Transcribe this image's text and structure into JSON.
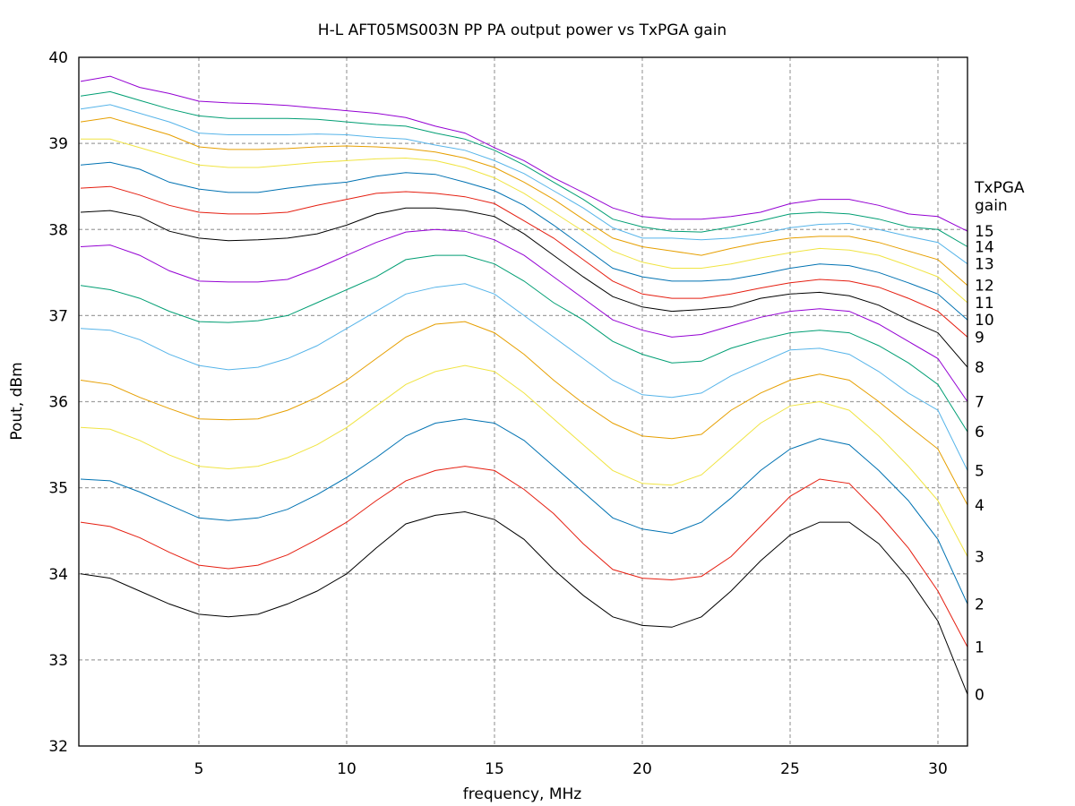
{
  "chart_data": {
    "type": "line",
    "title": "H-L AFT05MS003N PP PA output power vs TxPGA gain",
    "xlabel": "frequency, MHz",
    "ylabel": "Pout, dBm",
    "xlim": [
      0.94,
      31
    ],
    "ylim": [
      32,
      40
    ],
    "xticks": [
      5,
      10,
      15,
      20,
      25,
      30
    ],
    "yticks": [
      32,
      33,
      34,
      35,
      36,
      37,
      38,
      39,
      40
    ],
    "grid": true,
    "legend_title": [
      "TxPGA",
      "gain"
    ],
    "legend_placement": "right, at line ends",
    "x": [
      1,
      2,
      3,
      4,
      5,
      6,
      7,
      8,
      9,
      10,
      11,
      12,
      13,
      14,
      15,
      16,
      17,
      18,
      19,
      20,
      21,
      22,
      23,
      24,
      25,
      26,
      27,
      28,
      29,
      30,
      31
    ],
    "series": [
      {
        "name": "0",
        "color": "#000000",
        "values": [
          34.0,
          33.95,
          33.8,
          33.65,
          33.53,
          33.5,
          33.53,
          33.65,
          33.8,
          34.0,
          34.3,
          34.58,
          34.68,
          34.72,
          34.63,
          34.4,
          34.05,
          33.75,
          33.5,
          33.4,
          33.38,
          33.5,
          33.8,
          34.15,
          34.45,
          34.6,
          34.6,
          34.35,
          33.95,
          33.45,
          32.6
        ]
      },
      {
        "name": "1",
        "color": "#e51e10",
        "values": [
          34.6,
          34.55,
          34.42,
          34.25,
          34.1,
          34.06,
          34.1,
          34.22,
          34.4,
          34.6,
          34.85,
          35.08,
          35.2,
          35.25,
          35.2,
          34.98,
          34.7,
          34.35,
          34.05,
          33.95,
          33.93,
          33.97,
          34.2,
          34.55,
          34.9,
          35.1,
          35.05,
          34.7,
          34.3,
          33.8,
          33.15
        ]
      },
      {
        "name": "2",
        "color": "#0072b2",
        "values": [
          35.1,
          35.08,
          34.95,
          34.8,
          34.65,
          34.62,
          34.65,
          34.75,
          34.92,
          35.12,
          35.35,
          35.6,
          35.75,
          35.8,
          35.75,
          35.55,
          35.25,
          34.95,
          34.65,
          34.52,
          34.47,
          34.6,
          34.88,
          35.2,
          35.45,
          35.57,
          35.5,
          35.2,
          34.85,
          34.4,
          33.65
        ]
      },
      {
        "name": "3",
        "color": "#f0e442",
        "values": [
          35.7,
          35.68,
          35.55,
          35.38,
          35.25,
          35.22,
          35.25,
          35.35,
          35.5,
          35.7,
          35.95,
          36.2,
          36.35,
          36.42,
          36.35,
          36.1,
          35.8,
          35.5,
          35.2,
          35.05,
          35.03,
          35.15,
          35.45,
          35.75,
          35.95,
          36.0,
          35.9,
          35.6,
          35.25,
          34.85,
          34.2
        ]
      },
      {
        "name": "4",
        "color": "#e69f00",
        "values": [
          36.25,
          36.2,
          36.05,
          35.92,
          35.8,
          35.79,
          35.8,
          35.9,
          36.05,
          36.25,
          36.5,
          36.75,
          36.9,
          36.93,
          36.8,
          36.55,
          36.25,
          35.98,
          35.75,
          35.6,
          35.57,
          35.62,
          35.9,
          36.1,
          36.25,
          36.32,
          36.25,
          36.0,
          35.72,
          35.45,
          34.8
        ]
      },
      {
        "name": "5",
        "color": "#56b4e9",
        "values": [
          36.85,
          36.83,
          36.72,
          36.55,
          36.42,
          36.37,
          36.4,
          36.5,
          36.65,
          36.85,
          37.05,
          37.25,
          37.33,
          37.37,
          37.25,
          37.0,
          36.75,
          36.5,
          36.25,
          36.08,
          36.05,
          36.1,
          36.3,
          36.45,
          36.6,
          36.62,
          36.55,
          36.35,
          36.1,
          35.9,
          35.2
        ]
      },
      {
        "name": "6",
        "color": "#009e73",
        "values": [
          37.35,
          37.3,
          37.2,
          37.05,
          36.93,
          36.92,
          36.94,
          37.0,
          37.15,
          37.3,
          37.45,
          37.65,
          37.7,
          37.7,
          37.6,
          37.4,
          37.15,
          36.95,
          36.7,
          36.55,
          36.45,
          36.47,
          36.62,
          36.72,
          36.8,
          36.83,
          36.8,
          36.65,
          36.45,
          36.2,
          35.65
        ]
      },
      {
        "name": "7",
        "color": "#9400d3",
        "values": [
          37.8,
          37.82,
          37.7,
          37.52,
          37.4,
          37.39,
          37.39,
          37.42,
          37.55,
          37.7,
          37.85,
          37.97,
          38.0,
          37.98,
          37.88,
          37.7,
          37.45,
          37.2,
          36.95,
          36.83,
          36.75,
          36.78,
          36.88,
          36.98,
          37.05,
          37.08,
          37.05,
          36.9,
          36.7,
          36.5,
          36.0
        ]
      },
      {
        "name": "8",
        "color": "#000000",
        "values": [
          38.2,
          38.22,
          38.15,
          37.98,
          37.9,
          37.87,
          37.88,
          37.9,
          37.95,
          38.05,
          38.18,
          38.25,
          38.25,
          38.22,
          38.15,
          37.95,
          37.7,
          37.45,
          37.22,
          37.1,
          37.05,
          37.07,
          37.1,
          37.2,
          37.25,
          37.27,
          37.23,
          37.12,
          36.95,
          36.8,
          36.4
        ]
      },
      {
        "name": "9",
        "color": "#e51e10",
        "values": [
          38.48,
          38.5,
          38.4,
          38.28,
          38.2,
          38.18,
          38.18,
          38.2,
          38.28,
          38.35,
          38.42,
          38.44,
          38.42,
          38.38,
          38.3,
          38.1,
          37.9,
          37.65,
          37.4,
          37.25,
          37.2,
          37.2,
          37.25,
          37.32,
          37.38,
          37.42,
          37.4,
          37.33,
          37.2,
          37.05,
          36.75
        ]
      },
      {
        "name": "10",
        "color": "#0072b2",
        "values": [
          38.75,
          38.78,
          38.7,
          38.55,
          38.47,
          38.43,
          38.43,
          38.48,
          38.52,
          38.55,
          38.62,
          38.66,
          38.64,
          38.55,
          38.45,
          38.28,
          38.05,
          37.8,
          37.55,
          37.45,
          37.4,
          37.4,
          37.42,
          37.48,
          37.55,
          37.6,
          37.58,
          37.5,
          37.38,
          37.25,
          36.95
        ]
      },
      {
        "name": "11",
        "color": "#f0e442",
        "values": [
          39.05,
          39.05,
          38.95,
          38.85,
          38.75,
          38.72,
          38.72,
          38.75,
          38.78,
          38.8,
          38.82,
          38.83,
          38.8,
          38.72,
          38.6,
          38.42,
          38.2,
          37.98,
          37.75,
          37.62,
          37.55,
          37.55,
          37.6,
          37.67,
          37.73,
          37.78,
          37.76,
          37.7,
          37.58,
          37.45,
          37.15
        ]
      },
      {
        "name": "12",
        "color": "#e69f00",
        "values": [
          39.25,
          39.3,
          39.2,
          39.1,
          38.96,
          38.93,
          38.93,
          38.94,
          38.96,
          38.97,
          38.96,
          38.94,
          38.9,
          38.83,
          38.72,
          38.55,
          38.35,
          38.12,
          37.9,
          37.8,
          37.75,
          37.7,
          37.78,
          37.85,
          37.9,
          37.92,
          37.92,
          37.85,
          37.75,
          37.65,
          37.35
        ]
      },
      {
        "name": "13",
        "color": "#56b4e9",
        "values": [
          39.4,
          39.45,
          39.35,
          39.25,
          39.12,
          39.1,
          39.1,
          39.1,
          39.11,
          39.1,
          39.07,
          39.05,
          38.98,
          38.92,
          38.8,
          38.65,
          38.45,
          38.25,
          38.02,
          37.9,
          37.9,
          37.88,
          37.9,
          37.95,
          38.02,
          38.06,
          38.07,
          38.0,
          37.92,
          37.85,
          37.6
        ]
      },
      {
        "name": "14",
        "color": "#009e73",
        "values": [
          39.55,
          39.6,
          39.5,
          39.4,
          39.32,
          39.29,
          39.29,
          39.29,
          39.28,
          39.25,
          39.22,
          39.2,
          39.12,
          39.05,
          38.92,
          38.75,
          38.55,
          38.35,
          38.12,
          38.03,
          37.98,
          37.97,
          38.03,
          38.1,
          38.18,
          38.2,
          38.18,
          38.12,
          38.03,
          38.0,
          37.8
        ]
      },
      {
        "name": "15",
        "color": "#9400d3",
        "values": [
          39.72,
          39.78,
          39.65,
          39.58,
          39.49,
          39.47,
          39.46,
          39.44,
          39.41,
          39.38,
          39.35,
          39.3,
          39.2,
          39.12,
          38.95,
          38.8,
          38.6,
          38.43,
          38.25,
          38.15,
          38.12,
          38.12,
          38.15,
          38.2,
          38.3,
          38.35,
          38.35,
          38.28,
          38.18,
          38.15,
          37.98
        ]
      }
    ]
  }
}
